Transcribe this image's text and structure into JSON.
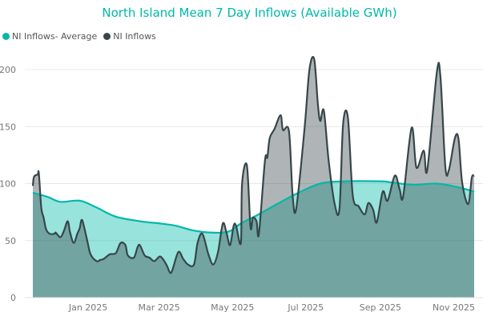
{
  "chart_data": {
    "type": "area",
    "title": "North Island Mean 7 Day Inflows (Available GWh)",
    "xlabel": "",
    "ylabel": "",
    "ylim": [
      0,
      210
    ],
    "xlim": [
      "2024-11-16",
      "2025-11-18"
    ],
    "yticks": [
      0,
      50,
      100,
      150,
      200
    ],
    "xticks": [
      {
        "date": "2025-01-01",
        "label": "Jan 2025"
      },
      {
        "date": "2025-03-01",
        "label": "Mar 2025"
      },
      {
        "date": "2025-05-01",
        "label": "May 2025"
      },
      {
        "date": "2025-07-01",
        "label": "Jul 2025"
      },
      {
        "date": "2025-09-01",
        "label": "Sep 2025"
      },
      {
        "date": "2025-11-01",
        "label": "Nov 2025"
      }
    ],
    "grid": true,
    "legend_position": "top-left",
    "series": [
      {
        "name": "NI Inflows- Average",
        "color": "#01b8aa",
        "points": [
          [
            "2024-11-16",
            92
          ],
          [
            "2024-11-29",
            88
          ],
          [
            "2024-12-09",
            84
          ],
          [
            "2024-12-25",
            85
          ],
          [
            "2025-01-08",
            79
          ],
          [
            "2025-01-24",
            71
          ],
          [
            "2025-02-13",
            67
          ],
          [
            "2025-03-02",
            65
          ],
          [
            "2025-03-15",
            63
          ],
          [
            "2025-03-29",
            59
          ],
          [
            "2025-04-14",
            57
          ],
          [
            "2025-04-28",
            58
          ],
          [
            "2025-05-08",
            65
          ],
          [
            "2025-05-21",
            72
          ],
          [
            "2025-06-07",
            82
          ],
          [
            "2025-06-23",
            91
          ],
          [
            "2025-07-13",
            100
          ],
          [
            "2025-08-02",
            102
          ],
          [
            "2025-09-01",
            102
          ],
          [
            "2025-09-11",
            101
          ],
          [
            "2025-09-28",
            99
          ],
          [
            "2025-10-18",
            100
          ],
          [
            "2025-11-04",
            97
          ],
          [
            "2025-11-18",
            93
          ]
        ]
      },
      {
        "name": "NI Inflows",
        "color": "#374649",
        "points": [
          [
            "2024-11-16",
            98
          ],
          [
            "2024-11-17",
            106
          ],
          [
            "2024-11-20",
            108
          ],
          [
            "2024-11-21",
            109
          ],
          [
            "2024-11-23",
            79
          ],
          [
            "2024-11-25",
            70
          ],
          [
            "2024-11-27",
            60
          ],
          [
            "2024-11-30",
            56
          ],
          [
            "2024-12-04",
            56
          ],
          [
            "2024-12-05",
            57
          ],
          [
            "2024-12-09",
            53
          ],
          [
            "2024-12-12",
            59
          ],
          [
            "2024-12-15",
            67
          ],
          [
            "2024-12-17",
            57
          ],
          [
            "2024-12-20",
            48
          ],
          [
            "2024-12-23",
            56
          ],
          [
            "2024-12-25",
            61
          ],
          [
            "2024-12-27",
            68
          ],
          [
            "2024-12-31",
            51
          ],
          [
            "2025-01-03",
            38
          ],
          [
            "2025-01-08",
            32
          ],
          [
            "2025-01-11",
            33
          ],
          [
            "2025-01-14",
            34
          ],
          [
            "2025-01-19",
            38
          ],
          [
            "2025-01-24",
            39
          ],
          [
            "2025-01-28",
            48
          ],
          [
            "2025-02-01",
            46
          ],
          [
            "2025-02-03",
            37
          ],
          [
            "2025-02-08",
            35
          ],
          [
            "2025-02-11",
            44
          ],
          [
            "2025-02-13",
            46
          ],
          [
            "2025-02-17",
            37
          ],
          [
            "2025-02-21",
            35
          ],
          [
            "2025-02-25",
            32
          ],
          [
            "2025-03-02",
            36
          ],
          [
            "2025-03-07",
            29
          ],
          [
            "2025-03-10",
            22
          ],
          [
            "2025-03-12",
            24
          ],
          [
            "2025-03-17",
            40
          ],
          [
            "2025-03-21",
            34
          ],
          [
            "2025-03-25",
            29
          ],
          [
            "2025-03-30",
            29
          ],
          [
            "2025-04-02",
            48
          ],
          [
            "2025-04-06",
            56
          ],
          [
            "2025-04-11",
            38
          ],
          [
            "2025-04-15",
            29
          ],
          [
            "2025-04-19",
            40
          ],
          [
            "2025-04-23",
            65
          ],
          [
            "2025-04-26",
            57
          ],
          [
            "2025-04-29",
            46
          ],
          [
            "2025-05-02",
            63
          ],
          [
            "2025-05-04",
            63
          ],
          [
            "2025-05-08",
            48
          ],
          [
            "2025-05-09",
            100
          ],
          [
            "2025-05-13",
            116
          ],
          [
            "2025-05-16",
            62
          ],
          [
            "2025-05-18",
            70
          ],
          [
            "2025-05-21",
            67
          ],
          [
            "2025-05-23",
            56
          ],
          [
            "2025-05-28",
            120
          ],
          [
            "2025-05-30",
            123
          ],
          [
            "2025-06-01",
            140
          ],
          [
            "2025-06-05",
            148
          ],
          [
            "2025-06-10",
            160
          ],
          [
            "2025-06-12",
            147
          ],
          [
            "2025-06-17",
            146
          ],
          [
            "2025-06-20",
            90
          ],
          [
            "2025-06-23",
            78
          ],
          [
            "2025-06-30",
            149
          ],
          [
            "2025-07-04",
            200
          ],
          [
            "2025-07-08",
            209
          ],
          [
            "2025-07-11",
            170
          ],
          [
            "2025-07-13",
            155
          ],
          [
            "2025-07-16",
            164
          ],
          [
            "2025-07-20",
            120
          ],
          [
            "2025-07-25",
            82
          ],
          [
            "2025-07-29",
            78
          ],
          [
            "2025-08-01",
            152
          ],
          [
            "2025-08-05",
            158
          ],
          [
            "2025-08-09",
            90
          ],
          [
            "2025-08-14",
            80
          ],
          [
            "2025-08-19",
            73
          ],
          [
            "2025-08-22",
            83
          ],
          [
            "2025-08-26",
            77
          ],
          [
            "2025-08-29",
            66
          ],
          [
            "2025-09-03",
            93
          ],
          [
            "2025-09-07",
            85
          ],
          [
            "2025-09-13",
            107
          ],
          [
            "2025-09-17",
            95
          ],
          [
            "2025-09-20",
            89
          ],
          [
            "2025-09-27",
            149
          ],
          [
            "2025-10-01",
            114
          ],
          [
            "2025-10-07",
            129
          ],
          [
            "2025-10-10",
            112
          ],
          [
            "2025-10-18",
            198
          ],
          [
            "2025-10-21",
            193
          ],
          [
            "2025-10-25",
            115
          ],
          [
            "2025-10-28",
            112
          ],
          [
            "2025-11-02",
            140
          ],
          [
            "2025-11-05",
            139
          ],
          [
            "2025-11-08",
            101
          ],
          [
            "2025-11-13",
            82
          ],
          [
            "2025-11-16",
            105
          ],
          [
            "2025-11-18",
            107
          ]
        ]
      }
    ]
  }
}
